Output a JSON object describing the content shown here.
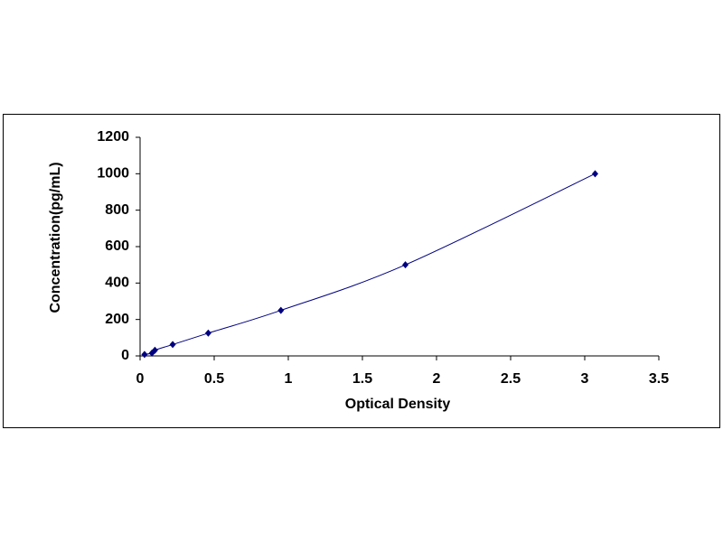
{
  "chart_data": {
    "type": "scatter",
    "x_label": "Optical Density",
    "y_label": "Concentration(pg/mL)",
    "x": [
      0.03,
      0.08,
      0.1,
      0.22,
      0.46,
      0.95,
      1.79,
      3.07
    ],
    "values": [
      7.8,
      15.6,
      31.25,
      62.5,
      125,
      250,
      500,
      1000
    ],
    "color": "#000080",
    "smooth": true,
    "grid": false,
    "xlim": [
      0,
      3.5
    ],
    "xticks": [
      0,
      0.5,
      1,
      1.5,
      2,
      2.5,
      3,
      3.5
    ],
    "ylim": [
      0,
      1200
    ],
    "yticks": [
      0,
      200,
      400,
      600,
      800,
      1000,
      1200
    ]
  }
}
